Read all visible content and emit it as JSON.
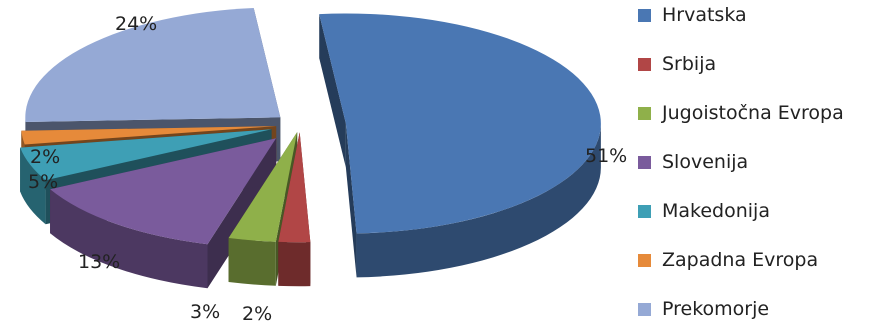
{
  "chart_data": {
    "type": "pie",
    "style": "3d-exploded",
    "legend_position": "right",
    "slices": [
      {
        "label": "Hrvatska",
        "value": 51,
        "display": "51%",
        "color": "#4A77B3"
      },
      {
        "label": "Srbija",
        "value": 2,
        "display": "2%",
        "color": "#B14646"
      },
      {
        "label": "Jugoistočna Evropa",
        "value": 3,
        "display": "3%",
        "color": "#8FB04A"
      },
      {
        "label": "Slovenija",
        "value": 13,
        "display": "13%",
        "color": "#7A5B9C"
      },
      {
        "label": "Makedonija",
        "value": 5,
        "display": "5%",
        "color": "#3E9FB5"
      },
      {
        "label": "Zapadna Evropa",
        "value": 2,
        "display": "2%",
        "color": "#E68A3A"
      },
      {
        "label": "Prekomorje",
        "value": 24,
        "display": "24%",
        "color": "#95A9D5"
      }
    ]
  }
}
